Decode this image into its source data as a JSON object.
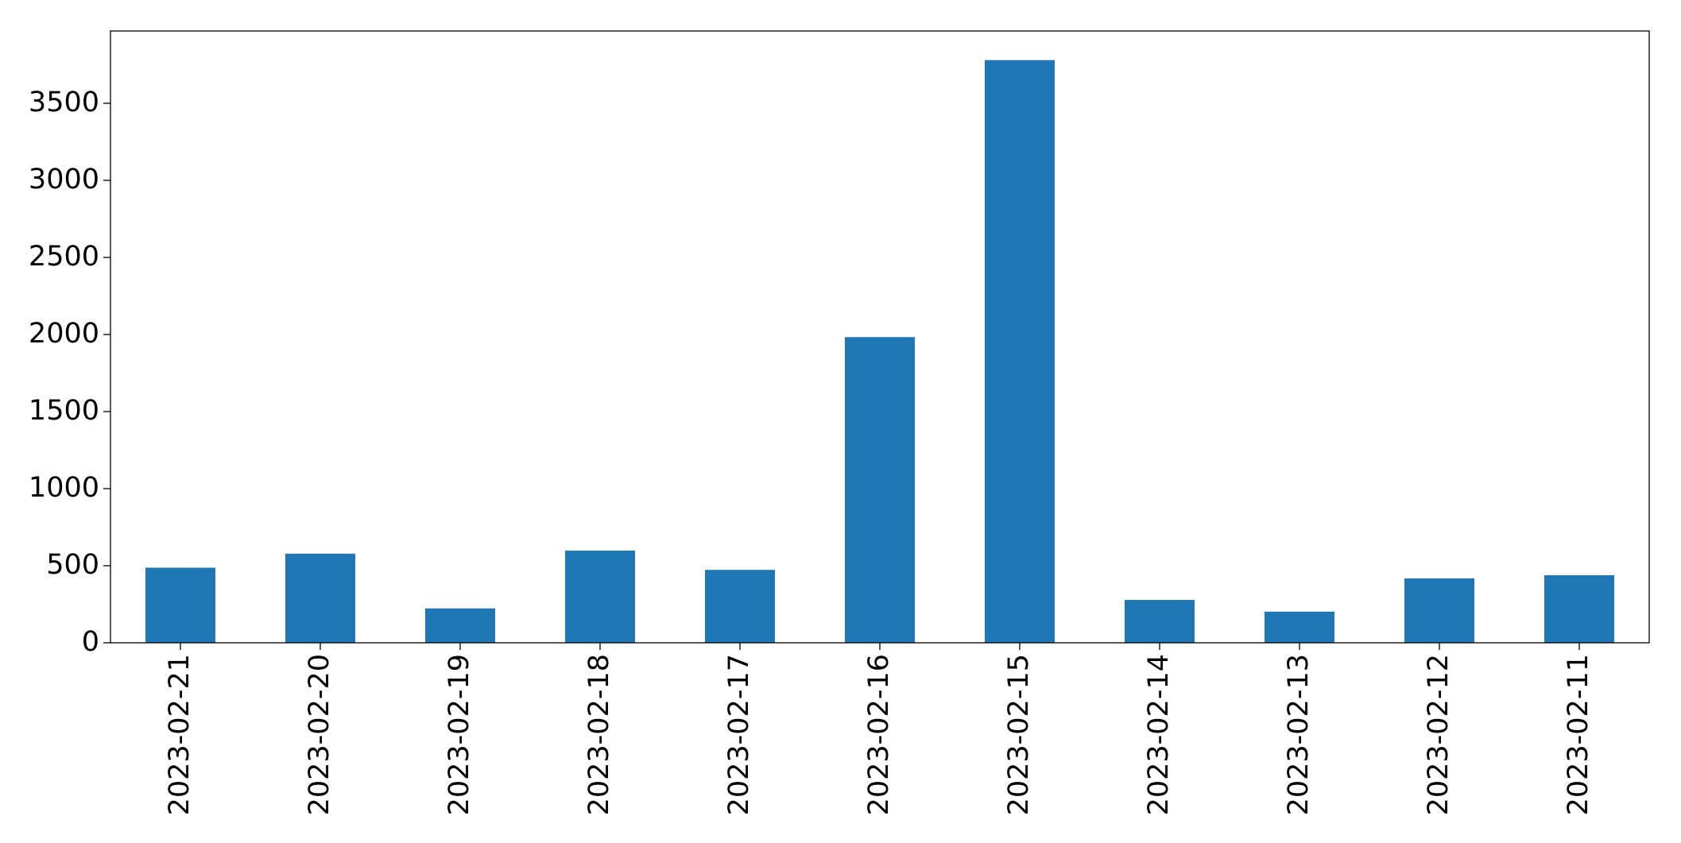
{
  "chart_data": {
    "type": "bar",
    "categories": [
      "2023-02-21",
      "2023-02-20",
      "2023-02-19",
      "2023-02-18",
      "2023-02-17",
      "2023-02-16",
      "2023-02-15",
      "2023-02-14",
      "2023-02-13",
      "2023-02-12",
      "2023-02-11"
    ],
    "values": [
      487,
      578,
      223,
      598,
      473,
      1983,
      3780,
      278,
      202,
      418,
      438
    ],
    "color": "#1f77b4",
    "ylim": [
      0,
      3969
    ],
    "yticks": [
      0,
      500,
      1000,
      1500,
      2000,
      2500,
      3000,
      3500
    ],
    "grid": false
  }
}
